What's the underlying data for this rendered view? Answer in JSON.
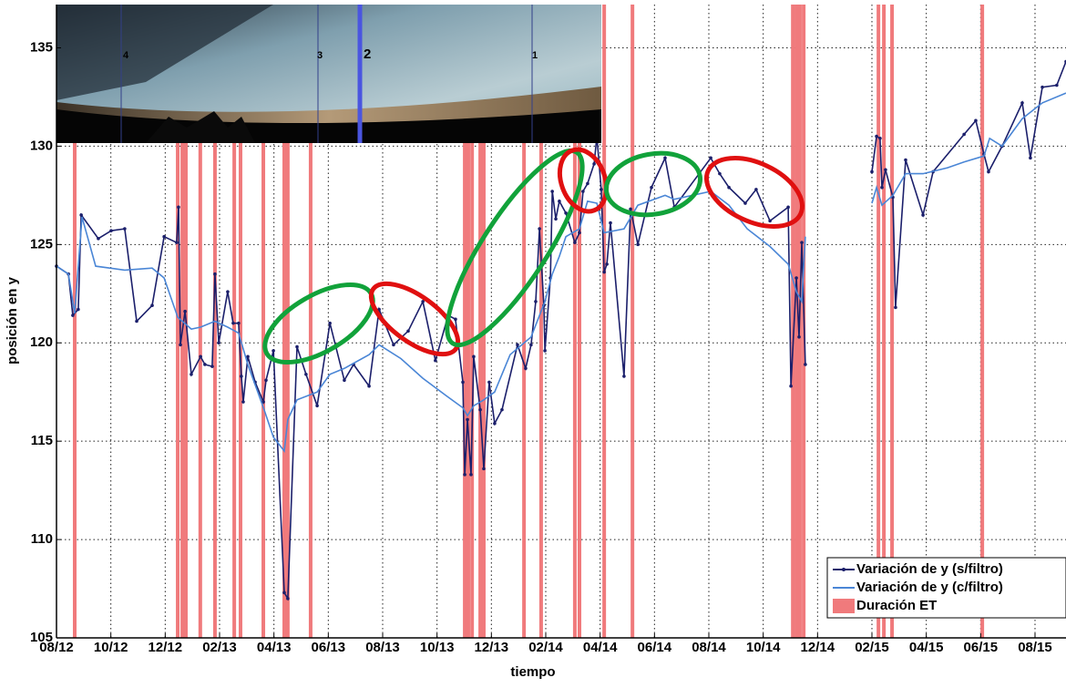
{
  "chart_data": {
    "type": "line",
    "x_label": "tiempo",
    "y_label": "posición en y",
    "xlim": [
      0,
      37.14
    ],
    "ylim": [
      105,
      137.2
    ],
    "xticks": [
      {
        "value": 0,
        "label": "08/12"
      },
      {
        "value": 2,
        "label": "10/12"
      },
      {
        "value": 4,
        "label": "12/12"
      },
      {
        "value": 6,
        "label": "02/13"
      },
      {
        "value": 8,
        "label": "04/13"
      },
      {
        "value": 10,
        "label": "06/13"
      },
      {
        "value": 12,
        "label": "08/13"
      },
      {
        "value": 14,
        "label": "10/13"
      },
      {
        "value": 16,
        "label": "12/13"
      },
      {
        "value": 18,
        "label": "02/14"
      },
      {
        "value": 20,
        "label": "04/14"
      },
      {
        "value": 22,
        "label": "06/14"
      },
      {
        "value": 24,
        "label": "08/14"
      },
      {
        "value": 26,
        "label": "10/14"
      },
      {
        "value": 28,
        "label": "12/14"
      },
      {
        "value": 30,
        "label": "02/15"
      },
      {
        "value": 32,
        "label": "04/15"
      },
      {
        "value": 34,
        "label": "06/15"
      },
      {
        "value": 36,
        "label": "08/15"
      }
    ],
    "yticks": [
      105,
      110,
      115,
      120,
      125,
      130,
      135
    ],
    "grid": true,
    "legend": "lower right",
    "events": {
      "name": "Duración ET",
      "color": "#f07a7c",
      "x": [
        0.67,
        4.46,
        4.63,
        4.76,
        5.29,
        5.83,
        6.54,
        6.77,
        7.61,
        8.38,
        8.51,
        9.35,
        15.02,
        15.15,
        15.29,
        15.59,
        15.72,
        17.2,
        17.83,
        19.07,
        19.24,
        20.15,
        21.19,
        27.09,
        27.22,
        27.35,
        27.49,
        30.24,
        30.44,
        30.74,
        34.06
      ]
    },
    "series": [
      {
        "name": "Variación de y (s/filtro)",
        "color": "#1b1f6b",
        "markers": true,
        "x": [
          0.0,
          0.44,
          0.6,
          0.8,
          0.91,
          1.54,
          2.01,
          2.51,
          2.95,
          3.52,
          3.96,
          4.42,
          4.49,
          4.56,
          4.73,
          4.96,
          5.3,
          5.46,
          5.73,
          5.83,
          5.97,
          6.3,
          6.5,
          6.7,
          6.8,
          6.87,
          7.04,
          7.31,
          7.61,
          7.71,
          7.98,
          8.38,
          8.51,
          8.85,
          9.18,
          9.59,
          10.06,
          10.59,
          10.93,
          11.5,
          11.87,
          12.4,
          12.94,
          13.48,
          13.94,
          14.41,
          14.68,
          14.95,
          15.02,
          15.12,
          15.25,
          15.35,
          15.59,
          15.72,
          15.92,
          16.12,
          16.39,
          16.96,
          17.26,
          17.46,
          17.63,
          17.77,
          17.93,
          17.97,
          18.17,
          18.24,
          18.37,
          18.5,
          18.74,
          19.07,
          19.24,
          19.37,
          19.54,
          19.78,
          19.88,
          20.04,
          20.15,
          20.25,
          20.38,
          20.88,
          21.12,
          21.39,
          21.89,
          22.39,
          22.73,
          24.07,
          24.4,
          24.74,
          25.34,
          25.74,
          26.25,
          26.92,
          27.02,
          27.22,
          27.32,
          27.42,
          27.55,
          29.0,
          30.0,
          30.17,
          30.3,
          30.37,
          30.5,
          30.77,
          30.87,
          31.24,
          31.88,
          32.25,
          33.39,
          33.82,
          34.12,
          34.29,
          34.79,
          35.53,
          35.83,
          36.27,
          36.8,
          37.14
        ],
        "values": [
          123.9,
          123.5,
          121.4,
          121.7,
          126.5,
          125.3,
          125.7,
          125.8,
          121.1,
          121.9,
          125.4,
          125.1,
          126.9,
          119.9,
          121.6,
          118.4,
          119.3,
          118.9,
          118.8,
          123.5,
          120.0,
          122.6,
          121.0,
          121.0,
          118.3,
          117.0,
          119.3,
          118.0,
          117.0,
          118.1,
          119.6,
          107.3,
          107.0,
          119.8,
          118.4,
          116.8,
          121.0,
          118.1,
          118.9,
          117.8,
          121.7,
          119.9,
          120.6,
          122.1,
          119.1,
          121.4,
          121.2,
          118.0,
          113.3,
          116.1,
          113.3,
          119.3,
          116.6,
          113.6,
          118.0,
          115.9,
          116.6,
          119.9,
          118.7,
          119.9,
          122.1,
          125.8,
          121.9,
          119.6,
          123.3,
          127.7,
          126.3,
          127.2,
          126.6,
          125.1,
          125.6,
          127.7,
          128.1,
          129.1,
          130.5,
          127.8,
          123.6,
          124.0,
          126.1,
          118.3,
          126.8,
          125.0,
          127.9,
          129.4,
          126.9,
          129.4,
          128.6,
          127.9,
          127.1,
          127.8,
          126.2,
          126.9,
          117.8,
          123.3,
          120.3,
          125.1,
          118.9,
          null,
          128.7,
          130.5,
          130.4,
          127.9,
          128.8,
          127.4,
          121.8,
          129.3,
          126.5,
          128.7,
          130.6,
          131.3,
          129.6,
          128.7,
          130.0,
          132.2,
          129.4,
          133.0,
          133.1,
          134.3
        ]
      },
      {
        "name": "Variación de y (c/filtro)",
        "color": "#4a86d6",
        "markers": false,
        "x": [
          0.0,
          0.44,
          0.67,
          0.94,
          1.44,
          2.51,
          3.52,
          3.96,
          4.46,
          4.96,
          5.3,
          5.83,
          6.3,
          6.7,
          7.04,
          7.64,
          7.98,
          8.38,
          8.51,
          8.85,
          9.59,
          10.06,
          10.59,
          11.5,
          11.87,
          12.67,
          13.48,
          14.35,
          14.95,
          15.12,
          15.35,
          15.72,
          16.12,
          16.69,
          17.46,
          17.97,
          18.24,
          18.5,
          18.74,
          19.24,
          19.54,
          19.88,
          20.15,
          20.88,
          21.39,
          22.39,
          22.73,
          24.07,
          24.74,
          25.41,
          26.25,
          26.92,
          27.22,
          27.42,
          27.55,
          29.0,
          30.0,
          30.17,
          30.37,
          30.77,
          31.24,
          31.88,
          32.78,
          33.39,
          34.12,
          34.33,
          34.79,
          35.53,
          36.27,
          37.14
        ],
        "values": [
          123.9,
          123.5,
          121.5,
          126.4,
          123.9,
          123.7,
          123.8,
          123.3,
          121.3,
          120.7,
          120.8,
          121.1,
          120.8,
          120.5,
          118.9,
          116.6,
          115.2,
          114.5,
          116.1,
          117.1,
          117.5,
          118.4,
          118.7,
          119.4,
          119.9,
          119.2,
          118.2,
          117.3,
          116.7,
          116.3,
          116.8,
          117.1,
          117.5,
          119.4,
          120.3,
          122.1,
          123.5,
          124.4,
          125.4,
          125.8,
          127.2,
          127.1,
          125.6,
          125.8,
          127.0,
          127.5,
          127.3,
          127.7,
          127.0,
          125.8,
          124.9,
          124.0,
          122.6,
          122.1,
          125.4,
          null,
          127.1,
          127.9,
          127.0,
          127.5,
          128.6,
          128.6,
          128.9,
          129.2,
          129.5,
          130.4,
          130.0,
          131.4,
          132.2,
          132.7
        ]
      }
    ],
    "inset_labels": [
      "4",
      "3",
      "2",
      "1"
    ]
  }
}
